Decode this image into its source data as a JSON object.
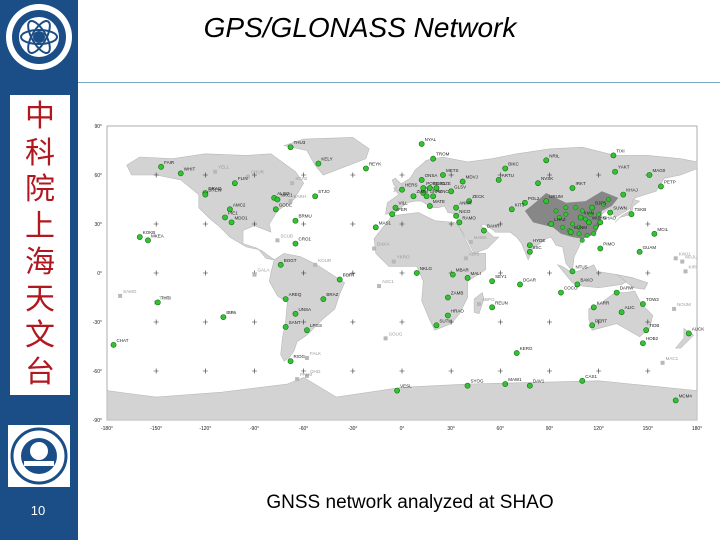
{
  "slide": {
    "title": "GPS/GLONASS Network",
    "vertical_text": [
      "中",
      "科",
      "院",
      "上",
      "海",
      "天",
      "文",
      "台"
    ],
    "page_number": "10",
    "caption": "GNSS network analyzed at SHAO"
  },
  "map": {
    "lat_labels": [
      "90°",
      "60°",
      "30°",
      "0°",
      "-30°",
      "-60°",
      "-90°"
    ],
    "lon_labels": [
      "-180°",
      "-150°",
      "-120°",
      "-90°",
      "-60°",
      "-30°",
      "0°",
      "30°",
      "60°",
      "90°",
      "120°",
      "150°",
      "180°"
    ],
    "colors": {
      "ocean": "#ffffff",
      "land": "#d3d3d3",
      "station": "#34c234",
      "station_outline": "#127012",
      "china_dense": "#6e6e6e"
    },
    "stations": [
      {
        "name": "THU3",
        "lon": -68,
        "lat": 77
      },
      {
        "name": "KELY",
        "lon": -51,
        "lat": 67
      },
      {
        "name": "REYK",
        "lon": -22,
        "lat": 64
      },
      {
        "name": "NRIL",
        "lon": 88,
        "lat": 69
      },
      {
        "name": "BIKC",
        "lon": 63,
        "lat": 64
      },
      {
        "name": "FAIR",
        "lon": -147,
        "lat": 65
      },
      {
        "name": "WHIT",
        "lon": -135,
        "lat": 61
      },
      {
        "name": "FLIN",
        "lon": -102,
        "lat": 55
      },
      {
        "name": "ALGO",
        "lon": -78,
        "lat": 46
      },
      {
        "name": "NRC1",
        "lon": -76,
        "lat": 45
      },
      {
        "name": "STJO",
        "lon": -53,
        "lat": 47
      },
      {
        "name": "DRAO",
        "lon": -120,
        "lat": 49
      },
      {
        "name": "PIE1",
        "lon": -108,
        "lat": 34
      },
      {
        "name": "BREW",
        "lon": -120,
        "lat": 48
      },
      {
        "name": "GODE",
        "lon": -77,
        "lat": 39
      },
      {
        "name": "AMC2",
        "lon": -105,
        "lat": 39
      },
      {
        "name": "MDO1",
        "lon": -104,
        "lat": 31
      },
      {
        "name": "BRMU",
        "lon": -65,
        "lat": 32
      },
      {
        "name": "CRO1",
        "lon": -65,
        "lat": 18
      },
      {
        "name": "BOGT",
        "lon": -74,
        "lat": 5
      },
      {
        "name": "MKEA",
        "lon": -155,
        "lat": 20
      },
      {
        "name": "KOKB",
        "lon": -160,
        "lat": 22
      },
      {
        "name": "ISPA",
        "lon": -109,
        "lat": -27
      },
      {
        "name": "THTI",
        "lon": -149,
        "lat": -18
      },
      {
        "name": "AREQ",
        "lon": -71,
        "lat": -16
      },
      {
        "name": "BRAZ",
        "lon": -48,
        "lat": -16
      },
      {
        "name": "UNSA",
        "lon": -65,
        "lat": -25
      },
      {
        "name": "LPGS",
        "lon": -58,
        "lat": -35
      },
      {
        "name": "SANT",
        "lon": -71,
        "lat": -33
      },
      {
        "name": "RIOG",
        "lon": -68,
        "lat": -54
      },
      {
        "name": "FORT",
        "lon": -38,
        "lat": -4
      },
      {
        "name": "MAS1",
        "lon": -16,
        "lat": 28
      },
      {
        "name": "NKLG",
        "lon": 9,
        "lat": 0
      },
      {
        "name": "MALI",
        "lon": 40,
        "lat": -3
      },
      {
        "name": "HRAO",
        "lon": 28,
        "lat": -26
      },
      {
        "name": "SUTH",
        "lon": 21,
        "lat": -32
      },
      {
        "name": "ZAMB",
        "lon": 28,
        "lat": -15
      },
      {
        "name": "MBAR",
        "lon": 31,
        "lat": -1
      },
      {
        "name": "SEY1",
        "lon": 55,
        "lat": -5
      },
      {
        "name": "DGAR",
        "lon": 72,
        "lat": -7
      },
      {
        "name": "REUN",
        "lon": 55,
        "lat": -21
      },
      {
        "name": "KERG",
        "lon": 70,
        "lat": -49
      },
      {
        "name": "DAV1",
        "lon": 78,
        "lat": -69
      },
      {
        "name": "MAW1",
        "lon": 63,
        "lat": -68
      },
      {
        "name": "CAS1",
        "lon": 110,
        "lat": -66
      },
      {
        "name": "MCM4",
        "lon": 167,
        "lat": -78
      },
      {
        "name": "SYOG",
        "lon": 40,
        "lat": -69
      },
      {
        "name": "VESL",
        "lon": -3,
        "lat": -72
      },
      {
        "name": "PERT",
        "lon": 116,
        "lat": -32
      },
      {
        "name": "KARR",
        "lon": 117,
        "lat": -21
      },
      {
        "name": "DARW",
        "lon": 131,
        "lat": -12
      },
      {
        "name": "ALIC",
        "lon": 134,
        "lat": -24
      },
      {
        "name": "TIDB",
        "lon": 149,
        "lat": -35
      },
      {
        "name": "HOB2",
        "lon": 147,
        "lat": -43
      },
      {
        "name": "TOW2",
        "lon": 147,
        "lat": -19
      },
      {
        "name": "AUCK",
        "lon": 175,
        "lat": -37
      },
      {
        "name": "CHAT",
        "lon": -176,
        "lat": -44
      },
      {
        "name": "PIMO",
        "lon": 121,
        "lat": 15
      },
      {
        "name": "NTUS",
        "lon": 104,
        "lat": 1
      },
      {
        "name": "BAKO",
        "lon": 107,
        "lat": -7
      },
      {
        "name": "COCO",
        "lon": 97,
        "lat": -12
      },
      {
        "name": "GUAM",
        "lon": 145,
        "lat": 13
      },
      {
        "name": "TSKB",
        "lon": 140,
        "lat": 36
      },
      {
        "name": "MCIL",
        "lon": 154,
        "lat": 24
      },
      {
        "name": "SUWN",
        "lon": 127,
        "lat": 37
      },
      {
        "name": "KHAJ",
        "lon": 135,
        "lat": 48
      },
      {
        "name": "PETP",
        "lon": 158,
        "lat": 53
      },
      {
        "name": "MAG0",
        "lon": 151,
        "lat": 60
      },
      {
        "name": "YAKT",
        "lon": 130,
        "lat": 62
      },
      {
        "name": "TIXI",
        "lon": 129,
        "lat": 72
      },
      {
        "name": "IRKT",
        "lon": 104,
        "lat": 52
      },
      {
        "name": "NVSK",
        "lon": 83,
        "lat": 55
      },
      {
        "name": "POL2",
        "lon": 75,
        "lat": 43
      },
      {
        "name": "KIT3",
        "lon": 67,
        "lat": 39
      },
      {
        "name": "ARTU",
        "lon": 59,
        "lat": 57
      },
      {
        "name": "ZECK",
        "lon": 41,
        "lat": 44
      },
      {
        "name": "MDVJ",
        "lon": 37,
        "lat": 56
      },
      {
        "name": "ANKR",
        "lon": 33,
        "lat": 40
      },
      {
        "name": "NICO",
        "lon": 33,
        "lat": 35
      },
      {
        "name": "RAMO",
        "lon": 35,
        "lat": 31
      },
      {
        "name": "BAHR",
        "lon": 50,
        "lat": 26
      },
      {
        "name": "IISC",
        "lon": 78,
        "lat": 13
      },
      {
        "name": "HYDE",
        "lon": 78,
        "lat": 17
      },
      {
        "name": "LHAZ",
        "lon": 91,
        "lat": 30
      },
      {
        "name": "KUNM",
        "lon": 103,
        "lat": 25
      },
      {
        "name": "WUHN",
        "lon": 114,
        "lat": 31
      },
      {
        "name": "SHAO",
        "lon": 121,
        "lat": 31
      },
      {
        "name": "BJFS",
        "lon": 116,
        "lat": 40
      },
      {
        "name": "XIAN",
        "lon": 109,
        "lat": 34
      },
      {
        "name": "URUM",
        "lon": 88,
        "lat": 44
      },
      {
        "name": "ONSA",
        "lon": 12,
        "lat": 57
      },
      {
        "name": "METS",
        "lon": 25,
        "lat": 60
      },
      {
        "name": "TROM",
        "lon": 19,
        "lat": 70
      },
      {
        "name": "NYAL",
        "lon": 12,
        "lat": 79
      },
      {
        "name": "HERS",
        "lon": 0,
        "lat": 51
      },
      {
        "name": "WTZR",
        "lon": 13,
        "lat": 49
      },
      {
        "name": "GRAZ",
        "lon": 15,
        "lat": 47
      },
      {
        "name": "MATE",
        "lon": 17,
        "lat": 41
      },
      {
        "name": "SFER",
        "lon": -6,
        "lat": 36
      },
      {
        "name": "VILL",
        "lon": -4,
        "lat": 40
      },
      {
        "name": "POTS",
        "lon": 13,
        "lat": 52
      },
      {
        "name": "JOZE",
        "lon": 21,
        "lat": 52
      },
      {
        "name": "BOR1",
        "lon": 17,
        "lat": 52
      },
      {
        "name": "ZIMM",
        "lon": 7,
        "lat": 47
      },
      {
        "name": "PENC",
        "lon": 19,
        "lat": 47
      },
      {
        "name": "GLSV",
        "lon": 30,
        "lat": 50
      }
    ],
    "inactive_stations": [
      {
        "name": "YELL",
        "lon": -114,
        "lat": 62
      },
      {
        "name": "CHUR",
        "lon": -94,
        "lat": 59
      },
      {
        "name": "SCH2",
        "lon": -67,
        "lat": 55
      },
      {
        "name": "BRFT",
        "lon": -38,
        "lat": -4
      },
      {
        "name": "GALA",
        "lon": -90,
        "lat": -1
      },
      {
        "name": "EISL",
        "lon": -109,
        "lat": -27
      },
      {
        "name": "MAC1",
        "lon": 159,
        "lat": -55
      },
      {
        "name": "NOUM",
        "lon": 166,
        "lat": -22
      },
      {
        "name": "KWJ1",
        "lon": 167,
        "lat": 9
      },
      {
        "name": "MAJU",
        "lon": 171,
        "lat": 7
      },
      {
        "name": "KOUR",
        "lon": -53,
        "lat": 5
      },
      {
        "name": "ASC1",
        "lon": -14,
        "lat": -8
      },
      {
        "name": "GOUG",
        "lon": -10,
        "lat": -40
      },
      {
        "name": "FALK",
        "lon": -58,
        "lat": -52
      },
      {
        "name": "OHI2",
        "lon": -58,
        "lat": -63
      },
      {
        "name": "PALM",
        "lon": -64,
        "lat": -65
      },
      {
        "name": "ABPO",
        "lon": 47,
        "lat": -19
      },
      {
        "name": "NAMA",
        "lon": 42,
        "lat": 19
      },
      {
        "name": "ADIS",
        "lon": 39,
        "lat": 9
      },
      {
        "name": "YKRO",
        "lon": -5,
        "lat": 7
      },
      {
        "name": "DAKA",
        "lon": -17,
        "lat": 15
      },
      {
        "name": "TAH1",
        "lon": -150,
        "lat": -18
      },
      {
        "name": "SAMO",
        "lon": -172,
        "lat": -14
      },
      {
        "name": "KIRI",
        "lon": 173,
        "lat": 1
      },
      {
        "name": "BARH",
        "lon": -68,
        "lat": 44
      },
      {
        "name": "SCUB",
        "lon": -76,
        "lat": 20
      }
    ],
    "china_cluster": [
      {
        "lon": 100,
        "lat": 36
      },
      {
        "lon": 104,
        "lat": 30
      },
      {
        "lon": 108,
        "lat": 28
      },
      {
        "lon": 112,
        "lat": 33
      },
      {
        "lon": 115,
        "lat": 36
      },
      {
        "lon": 118,
        "lat": 28
      },
      {
        "lon": 110,
        "lat": 38
      },
      {
        "lon": 106,
        "lat": 40
      },
      {
        "lon": 102,
        "lat": 26
      },
      {
        "lon": 96,
        "lat": 34
      },
      {
        "lon": 120,
        "lat": 36
      },
      {
        "lon": 113,
        "lat": 23
      },
      {
        "lon": 110,
        "lat": 20
      },
      {
        "lon": 117,
        "lat": 24
      },
      {
        "lon": 100,
        "lat": 40
      },
      {
        "lon": 94,
        "lat": 38
      },
      {
        "lon": 123,
        "lat": 42
      },
      {
        "lon": 126,
        "lat": 45
      },
      {
        "lon": 108,
        "lat": 24
      },
      {
        "lon": 98,
        "lat": 28
      }
    ]
  }
}
